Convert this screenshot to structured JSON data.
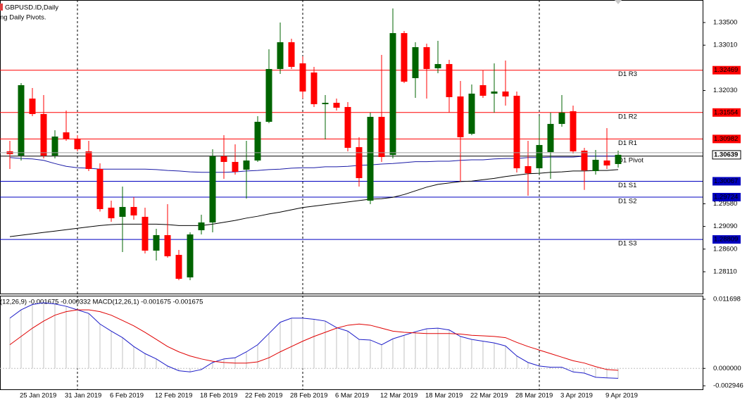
{
  "chart_data": {
    "type": "candlestick",
    "title": "GBPUSD.ID,Daily",
    "subtitle": "ng Daily Pivots.",
    "categories": [
      null,
      "25 Jan 2019",
      null,
      null,
      null,
      "31 Jan 2019",
      null,
      null,
      null,
      "6 Feb 2019",
      null,
      null,
      null,
      "12 Feb 2019",
      null,
      null,
      null,
      "18 Feb 2019",
      null,
      null,
      null,
      "22 Feb 2019",
      null,
      null,
      null,
      "28 Feb 2019",
      null,
      null,
      null,
      "6 Mar 2019",
      null,
      null,
      null,
      "12 Mar 2019",
      null,
      null,
      null,
      "18 Mar 2019",
      null,
      null,
      null,
      "22 Mar 2019",
      null,
      null,
      null,
      "28 Mar 2019",
      null,
      null,
      null,
      "3 Apr 2019",
      null,
      null,
      null,
      "9 Apr 2019",
      null
    ],
    "open": [
      1.30714,
      1.30622,
      1.31855,
      1.31521,
      1.30622,
      1.31125,
      1.30988,
      1.30714,
      1.30333,
      1.29496,
      1.29298,
      1.29511,
      1.29298,
      1.28567,
      1.28902,
      1.28475,
      1.27988,
      1.29008,
      1.29176,
      1.30607,
      1.30485,
      1.30318,
      1.30516,
      1.31353,
      1.32495,
      1.33074,
      1.32617,
      1.32419,
      1.31734,
      1.31764,
      1.31673,
      1.30805,
      1.29648,
      1.3146,
      1.30637,
      1.33271,
      1.32297,
      1.32967,
      1.3251,
      1.32602,
      1.31901,
      1.31094,
      1.32145,
      1.31962,
      1.32008,
      1.31916,
      1.30394,
      1.30348,
      1.30698,
      1.31307,
      1.31581,
      1.30729,
      1.30287,
      1.30516,
      1.3044
    ],
    "high": [
      1.30942,
      1.3219,
      1.32084,
      1.31932,
      1.3117,
      1.31597,
      1.31064,
      1.30942,
      1.30455,
      1.29648,
      1.29952,
      1.29724,
      1.29496,
      1.29039,
      1.29572,
      1.28582,
      1.28962,
      1.29343,
      1.30759,
      1.31064,
      1.30866,
      1.30942,
      1.31475,
      1.32921,
      1.335,
      1.3315,
      1.32769,
      1.32541,
      1.31932,
      1.31855,
      1.31779,
      1.31019,
      1.31551,
      1.32799,
      1.33804,
      1.33317,
      1.33074,
      1.33043,
      1.33104,
      1.32693,
      1.32236,
      1.3216,
      1.32465,
      1.32617,
      1.32678,
      1.32008,
      1.30942,
      1.31475,
      1.31551,
      1.31932,
      1.31703,
      1.3079,
      1.30744,
      1.31216,
      1.30729
    ],
    "low": [
      1.30333,
      1.30516,
      1.31475,
      1.30561,
      1.30561,
      1.30942,
      1.30714,
      1.30287,
      1.29412,
      1.29191,
      1.28536,
      1.29237,
      1.28506,
      1.28354,
      1.28415,
      1.27927,
      1.27927,
      1.28917,
      1.28962,
      1.3012,
      1.30211,
      1.29693,
      1.30485,
      1.31323,
      1.32388,
      1.32495,
      1.31855,
      1.31673,
      1.30973,
      1.31597,
      1.30714,
      1.29952,
      1.29572,
      1.30485,
      1.30561,
      1.3219,
      1.31871,
      1.31855,
      1.32404,
      1.31551,
      1.30059,
      1.31064,
      1.31871,
      1.31551,
      1.31703,
      1.30257,
      1.29754,
      1.30211,
      1.3012,
      1.31247,
      1.30668,
      1.29879,
      1.30211,
      1.30333,
      1.30363
    ],
    "close": [
      1.30653,
      1.32145,
      1.31521,
      1.30622,
      1.31034,
      1.30988,
      1.30759,
      1.30333,
      1.29465,
      1.29267,
      1.29511,
      1.29328,
      1.28567,
      1.28902,
      1.28445,
      1.27958,
      1.28917,
      1.29176,
      1.30607,
      1.30485,
      1.30272,
      1.30516,
      1.31353,
      1.32495,
      1.33074,
      1.32541,
      1.32008,
      1.31734,
      1.31764,
      1.31658,
      1.3079,
      1.30135,
      1.3146,
      1.30592,
      1.33271,
      1.32221,
      1.32967,
      1.32495,
      1.32602,
      1.31886,
      1.31019,
      1.31962,
      1.31916,
      1.32008,
      1.31901,
      1.30348,
      1.30242,
      1.30851,
      1.31307,
      1.31551,
      1.30714,
      1.30302,
      1.30531,
      1.30409,
      1.30639
    ],
    "up_color": "#006400",
    "down_color": "#ff0000",
    "ylim": [
      1.27638,
      1.33987
    ],
    "yticks": [
      {
        "value": 1.335,
        "label": "1.33500"
      },
      {
        "value": 1.3301,
        "label": "1.33010"
      },
      {
        "value": 1.3203,
        "label": "1.32030"
      },
      {
        "value": 1.2958,
        "label": "1.29580"
      },
      {
        "value": 1.2909,
        "label": "1.29090"
      },
      {
        "value": 1.286,
        "label": "1.28600"
      },
      {
        "value": 1.2811,
        "label": "1.28110"
      }
    ],
    "moving_averages": [
      {
        "color": "#1a1aa6",
        "values": [
          1.3058,
          1.3056,
          1.3055,
          1.3052,
          1.3045,
          1.3039,
          1.3036,
          1.3035,
          1.3033,
          1.3033,
          1.3033,
          1.3033,
          1.3033,
          1.3032,
          1.303,
          1.3029,
          1.3027,
          1.3026,
          1.3026,
          1.3026,
          1.3027,
          1.3029,
          1.303,
          1.3032,
          1.3033,
          1.3035,
          1.3036,
          1.3036,
          1.3038,
          1.3038,
          1.3039,
          1.3041,
          1.3042,
          1.3044,
          1.3045,
          1.3047,
          1.3049,
          1.3049,
          1.305,
          1.305,
          1.3052,
          1.3053,
          1.3053,
          1.3055,
          1.3056,
          1.3056,
          1.3058,
          1.3058,
          1.3059,
          1.3059,
          1.3059,
          1.3061,
          1.3061,
          1.3061,
          1.3061
        ]
      },
      {
        "color": "#000000",
        "values": [
          1.2887,
          1.289,
          1.2893,
          1.2896,
          1.2899,
          1.2902,
          1.2905,
          1.2908,
          1.2911,
          1.2913,
          1.2914,
          1.2914,
          1.2914,
          1.2914,
          1.2913,
          1.2911,
          1.2911,
          1.2911,
          1.2914,
          1.2918,
          1.2922,
          1.2927,
          1.2931,
          1.2936,
          1.294,
          1.2945,
          1.295,
          1.2953,
          1.2956,
          1.2959,
          1.2962,
          1.2965,
          1.2968,
          1.2969,
          1.2972,
          1.2978,
          1.2986,
          1.2994,
          1.3,
          1.3003,
          1.3006,
          1.3007,
          1.301,
          1.3013,
          1.3017,
          1.302,
          1.3023,
          1.3024,
          1.3026,
          1.3027,
          1.3029,
          1.3029,
          1.303,
          1.303,
          1.3032
        ]
      }
    ],
    "pivots": [
      {
        "label": "D1 R3",
        "value": 1.32469,
        "color": "#ff0000"
      },
      {
        "label": "D1 R2",
        "value": 1.31554,
        "color": "#ff0000"
      },
      {
        "label": "D1 R1",
        "value": 1.30982,
        "color": "#ff0000"
      },
      {
        "label": "D1 Pivot",
        "value": 1.3061,
        "color": "#000000"
      },
      {
        "label": "D1 S1",
        "value": 1.30067,
        "color": "#0000c0"
      },
      {
        "label": "D1 S2",
        "value": 1.29724,
        "color": "#0000c0"
      },
      {
        "label": "D1 S3",
        "value": 1.28809,
        "color": "#0000c0"
      }
    ],
    "macd": {
      "label": "(12,26,9) -0.001675 -0.000332 MACD(12,26,1) -0.001675 -0.001675",
      "ylim": [
        -0.002946,
        0.011698
      ],
      "yticks": [
        0.011698,
        {
          "value": 0,
          "label": "0.000000"
        },
        -0.002946
      ],
      "histogram_color": "#c0c0c0",
      "series": [
        {
          "color": "#1c1cc8",
          "values": [
            0.0085,
            0.0099,
            0.0108,
            0.0111,
            0.0109,
            0.0105,
            0.0099,
            0.0093,
            0.0075,
            0.0063,
            0.0052,
            0.0037,
            0.0025,
            0.0016,
            0.0004,
            -0.0004,
            -0.0006,
            -0.0002,
            0.001,
            0.0016,
            0.0018,
            0.0028,
            0.004,
            0.0059,
            0.0078,
            0.0085,
            0.0085,
            0.0083,
            0.008,
            0.0069,
            0.0063,
            0.0049,
            0.0048,
            0.004,
            0.005,
            0.0056,
            0.0062,
            0.0067,
            0.0068,
            0.0065,
            0.0054,
            0.0049,
            0.0046,
            0.0043,
            0.0038,
            0.0021,
            0.001,
            0.0004,
            0.0002,
            0.0002,
            -0.0006,
            -0.0008,
            -0.0015,
            -0.0016,
            -0.001675
          ]
        },
        {
          "color": "#e00000",
          "values": [
            0.004,
            0.0054,
            0.0068,
            0.008,
            0.009,
            0.0096,
            0.0099,
            0.0099,
            0.0096,
            0.009,
            0.0081,
            0.0072,
            0.0061,
            0.0049,
            0.0037,
            0.0028,
            0.0021,
            0.0016,
            0.0012,
            0.001,
            0.0009,
            0.0009,
            0.0011,
            0.0018,
            0.0028,
            0.0037,
            0.0046,
            0.0054,
            0.0061,
            0.0068,
            0.0073,
            0.0075,
            0.0073,
            0.0068,
            0.0063,
            0.0061,
            0.006,
            0.0059,
            0.0059,
            0.0059,
            0.0058,
            0.0056,
            0.0055,
            0.0054,
            0.0052,
            0.0044,
            0.0037,
            0.0031,
            0.0025,
            0.0019,
            0.0013,
            0.0009,
            0.0003,
            -0.0002,
            -0.000332
          ]
        }
      ]
    }
  }
}
